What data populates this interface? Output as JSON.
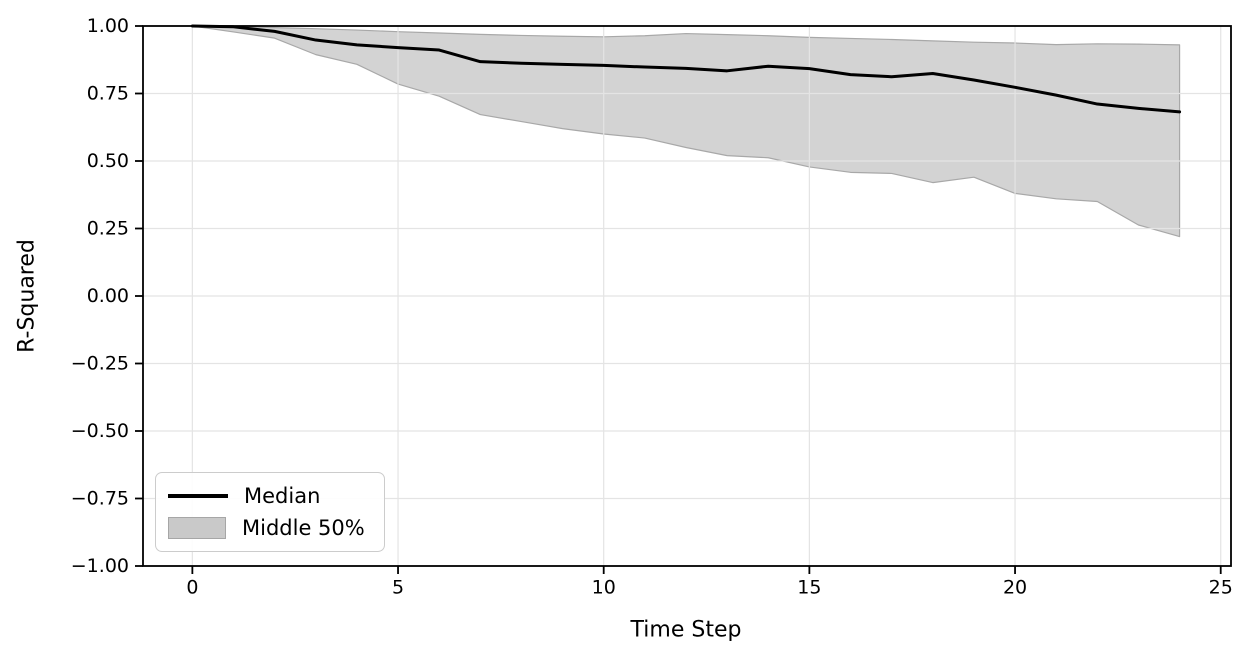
{
  "chart_data": {
    "type": "line",
    "title": "",
    "xlabel": "Time Step",
    "ylabel": "R-Squared",
    "xlim": [
      -1.2,
      25.25
    ],
    "ylim": [
      -1.0,
      1.0
    ],
    "grid": true,
    "x": [
      0,
      1,
      2,
      3,
      4,
      5,
      6,
      7,
      8,
      9,
      10,
      11,
      12,
      13,
      14,
      15,
      16,
      17,
      18,
      19,
      20,
      21,
      22,
      23,
      24
    ],
    "series": [
      {
        "name": "Median",
        "kind": "line",
        "values": [
          1.0,
          0.997,
          0.98,
          0.948,
          0.93,
          0.92,
          0.911,
          0.868,
          0.862,
          0.858,
          0.854,
          0.848,
          0.843,
          0.834,
          0.851,
          0.842,
          0.82,
          0.812,
          0.824,
          0.8,
          0.773,
          0.744,
          0.711,
          0.695,
          0.682
        ]
      },
      {
        "name": "Middle 50%",
        "kind": "band",
        "upper": [
          1.0,
          0.998,
          0.994,
          0.99,
          0.985,
          0.979,
          0.974,
          0.969,
          0.965,
          0.962,
          0.96,
          0.964,
          0.972,
          0.968,
          0.964,
          0.958,
          0.954,
          0.95,
          0.945,
          0.94,
          0.937,
          0.931,
          0.934,
          0.933,
          0.93
        ],
        "lower": [
          1.0,
          0.978,
          0.955,
          0.894,
          0.858,
          0.785,
          0.74,
          0.672,
          0.646,
          0.62,
          0.6,
          0.585,
          0.55,
          0.52,
          0.512,
          0.478,
          0.458,
          0.454,
          0.42,
          0.44,
          0.38,
          0.36,
          0.35,
          0.263,
          0.22
        ]
      }
    ],
    "xticks": {
      "values": [
        0,
        5,
        10,
        15,
        20,
        25
      ],
      "labels": [
        "0",
        "5",
        "10",
        "15",
        "20",
        "25"
      ]
    },
    "yticks": {
      "values": [
        1.0,
        0.75,
        0.5,
        0.25,
        0.0,
        -0.25,
        -0.5,
        -0.75,
        -1.0
      ],
      "labels": [
        "1.00",
        "0.75",
        "0.50",
        "0.25",
        "0.00",
        "−0.25",
        "−0.50",
        "−0.75",
        "−1.00"
      ]
    },
    "legend": {
      "position": "lower-left",
      "entries": [
        "Median",
        "Middle 50%"
      ]
    },
    "colors": {
      "median": "#000000",
      "band_fill": "#d3d3d3",
      "band_edge": "#a8a8a8",
      "grid": "#e4e4e4",
      "axis": "#000000"
    }
  }
}
